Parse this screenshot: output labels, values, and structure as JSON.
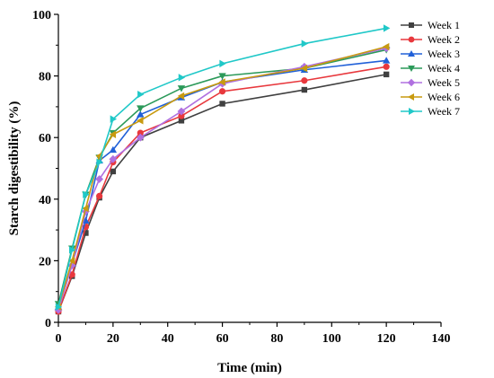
{
  "chart_data": {
    "type": "line",
    "xlabel": "Time (min)",
    "ylabel": "Starch digestibility (%)",
    "xlim": [
      0,
      140
    ],
    "ylim": [
      0,
      100
    ],
    "xticks": [
      "0",
      "20",
      "40",
      "60",
      "80",
      "100",
      "120",
      "140"
    ],
    "yticks": [
      "0",
      "20",
      "40",
      "60",
      "80",
      "100"
    ],
    "grid": false,
    "legend_position": "top-right",
    "x": [
      0,
      5,
      10,
      15,
      20,
      30,
      45,
      60,
      90,
      120
    ],
    "series": [
      {
        "name": "Week 1",
        "color": "#404040",
        "marker": "square",
        "values": [
          3.5,
          15,
          29,
          40.5,
          49,
          60,
          65.5,
          71,
          75.5,
          80.5
        ]
      },
      {
        "name": "Week 2",
        "color": "#e8383d",
        "marker": "circle",
        "values": [
          3.5,
          15.5,
          31,
          41,
          52,
          61.5,
          67,
          75,
          78.5,
          83
        ]
      },
      {
        "name": "Week 3",
        "color": "#2060d8",
        "marker": "triangle-up",
        "values": [
          5,
          19,
          33,
          52.5,
          56,
          67.5,
          73,
          78,
          82,
          85
        ]
      },
      {
        "name": "Week 4",
        "color": "#2c9a5a",
        "marker": "triangle-down",
        "values": [
          6,
          24,
          41.5,
          53.5,
          61.5,
          69.5,
          76,
          80,
          82.5,
          88.5
        ]
      },
      {
        "name": "Week 5",
        "color": "#b070e0",
        "marker": "diamond",
        "values": [
          4,
          18.5,
          36,
          46.5,
          53,
          60,
          68.5,
          77.5,
          83,
          89
        ]
      },
      {
        "name": "Week 6",
        "color": "#c89a10",
        "marker": "triangle-left",
        "values": [
          5,
          20,
          37,
          54,
          61,
          65.5,
          73.5,
          78,
          82.5,
          89.5
        ]
      },
      {
        "name": "Week 7",
        "color": "#20c8c8",
        "marker": "triangle-right",
        "values": [
          5,
          23.5,
          41.5,
          52,
          66,
          74,
          79.5,
          84,
          90.5,
          95.5
        ]
      }
    ]
  }
}
